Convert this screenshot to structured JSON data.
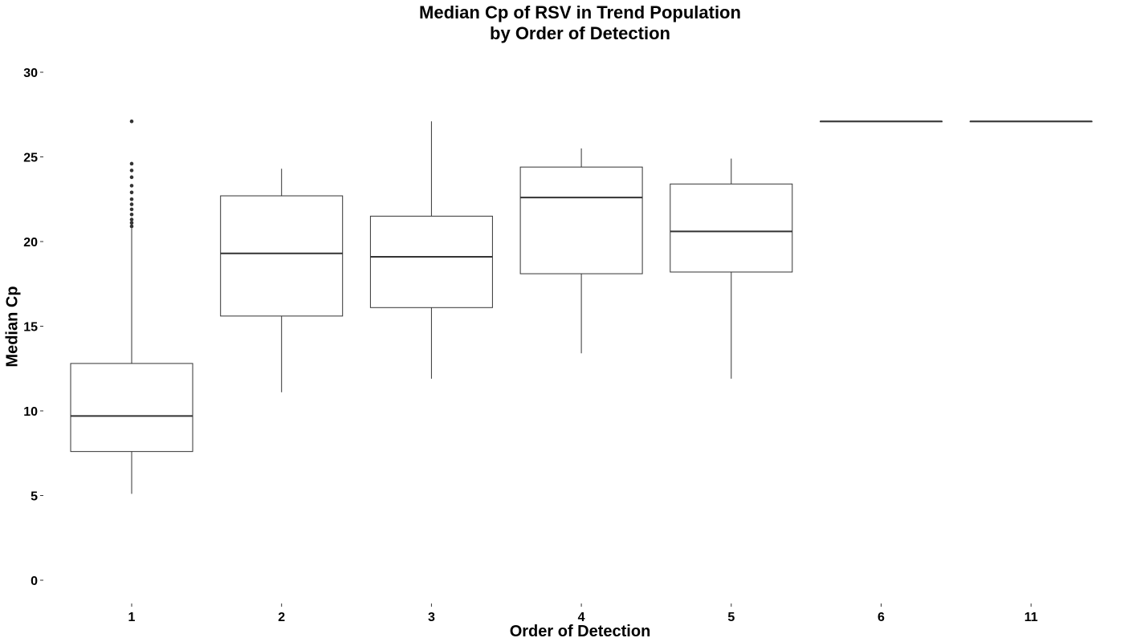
{
  "chart_data": {
    "type": "boxplot",
    "title_lines": [
      "Median Cp of RSV in Trend Population",
      "by Order of Detection"
    ],
    "xlabel": "Order of Detection",
    "ylabel": "Median Cp",
    "ylim": [
      0,
      30
    ],
    "yticks": [
      0,
      5,
      10,
      15,
      20,
      25,
      30
    ],
    "grid": false,
    "legend": "none",
    "colors": {
      "box_stroke": "#333333",
      "box_fill": "#ffffff",
      "outlier": "#333333",
      "text": "#000000"
    },
    "categories": [
      "1",
      "2",
      "3",
      "4",
      "5",
      "6",
      "11"
    ],
    "boxes": [
      {
        "category": "1",
        "whisker_low": 5.1,
        "q1": 7.6,
        "median": 9.7,
        "q3": 12.8,
        "whisker_high": 20.8,
        "outliers": [
          20.9,
          21.1,
          21.3,
          21.6,
          21.9,
          22.2,
          22.5,
          22.9,
          23.3,
          23.8,
          24.2,
          24.6,
          27.1
        ]
      },
      {
        "category": "2",
        "whisker_low": 11.1,
        "q1": 15.6,
        "median": 19.3,
        "q3": 22.7,
        "whisker_high": 24.3,
        "outliers": []
      },
      {
        "category": "3",
        "whisker_low": 11.9,
        "q1": 16.1,
        "median": 19.1,
        "q3": 21.5,
        "whisker_high": 27.1,
        "outliers": []
      },
      {
        "category": "4",
        "whisker_low": 13.4,
        "q1": 18.1,
        "median": 22.6,
        "q3": 24.4,
        "whisker_high": 25.5,
        "outliers": []
      },
      {
        "category": "5",
        "whisker_low": 11.9,
        "q1": 18.2,
        "median": 20.6,
        "q3": 23.4,
        "whisker_high": 24.9,
        "outliers": []
      },
      {
        "category": "6",
        "whisker_low": 27.1,
        "q1": 27.1,
        "median": 27.1,
        "q3": 27.1,
        "whisker_high": 27.1,
        "outliers": []
      },
      {
        "category": "11",
        "whisker_low": 27.1,
        "q1": 27.1,
        "median": 27.1,
        "q3": 27.1,
        "whisker_high": 27.1,
        "outliers": []
      }
    ]
  }
}
